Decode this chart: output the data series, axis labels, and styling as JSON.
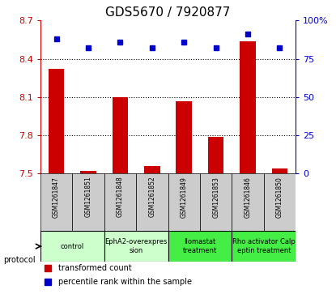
{
  "title": "GDS5670 / 7920877",
  "samples": [
    "GSM1261847",
    "GSM1261851",
    "GSM1261848",
    "GSM1261852",
    "GSM1261849",
    "GSM1261853",
    "GSM1261846",
    "GSM1261850"
  ],
  "bar_values": [
    8.32,
    7.52,
    8.1,
    7.56,
    8.07,
    7.79,
    8.54,
    7.54
  ],
  "dot_values": [
    88,
    82,
    86,
    82,
    86,
    82,
    91,
    82
  ],
  "bar_color": "#cc0000",
  "dot_color": "#0000cc",
  "ylim_left": [
    7.5,
    8.7
  ],
  "ylim_right": [
    0,
    100
  ],
  "yticks_left": [
    7.5,
    7.8,
    8.1,
    8.4,
    8.7
  ],
  "ytick_labels_left": [
    "7.5",
    "7.8",
    "8.1",
    "8.4",
    "8.7"
  ],
  "yticks_right": [
    0,
    25,
    50,
    75,
    100
  ],
  "ytick_labels_right": [
    "0",
    "25",
    "50",
    "75",
    "100%"
  ],
  "hlines": [
    7.8,
    8.1,
    8.4
  ],
  "groups": [
    {
      "label": "control",
      "cols": [
        0,
        1
      ],
      "color": "#ccffcc"
    },
    {
      "label": "EphA2-overexpres\nsion",
      "cols": [
        2,
        3
      ],
      "color": "#ccffcc"
    },
    {
      "label": "Ilomastat\ntreatment",
      "cols": [
        4,
        5
      ],
      "color": "#44ee44"
    },
    {
      "label": "Rho activator Calp\neptin treatment",
      "cols": [
        6,
        7
      ],
      "color": "#44ee44"
    }
  ],
  "legend_bar_label": "transformed count",
  "legend_dot_label": "percentile rank within the sample",
  "protocol_label": "protocol",
  "bg_color": "#ffffff",
  "cell_bg": "#cccccc",
  "bar_width": 0.5
}
